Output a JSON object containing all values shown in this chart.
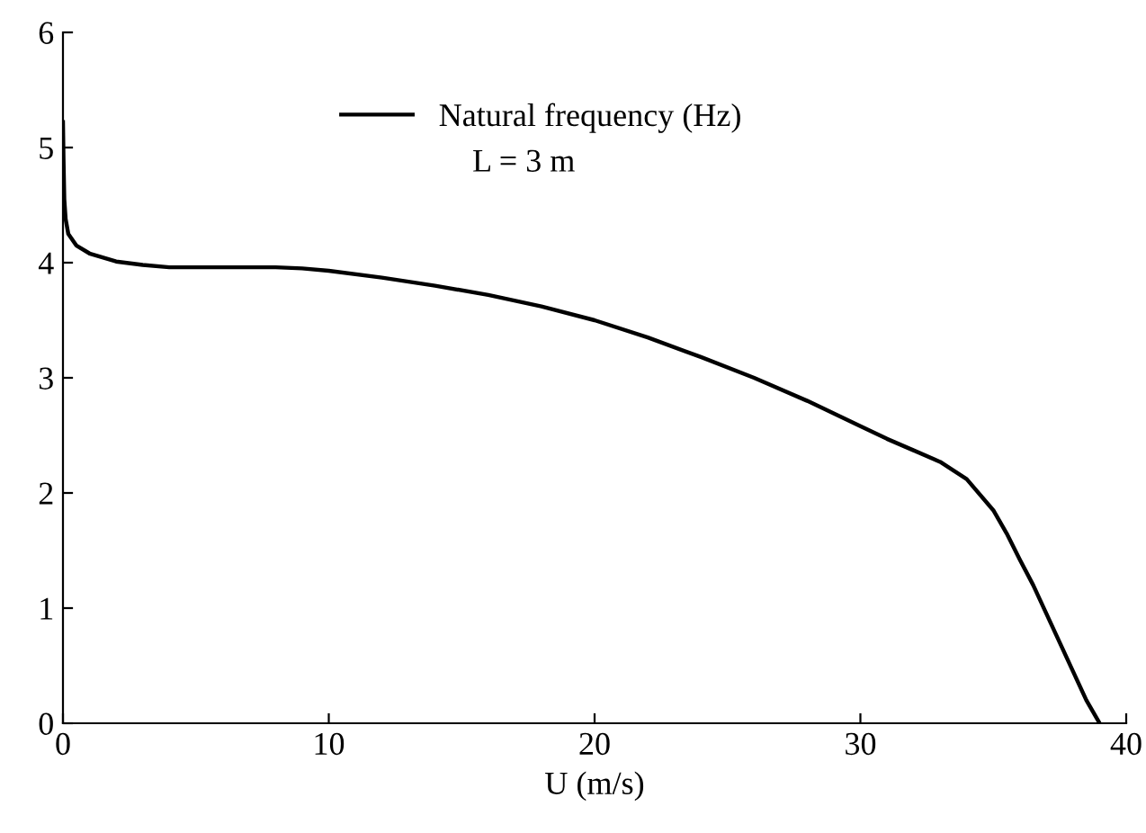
{
  "chart_data": {
    "type": "line",
    "xlabel": "U (m/s)",
    "x": [
      0,
      0.02,
      0.05,
      0.1,
      0.2,
      0.5,
      1,
      2,
      3,
      4,
      6,
      8,
      9,
      10,
      12,
      14,
      16,
      18,
      20,
      22,
      24,
      26,
      28,
      30,
      31,
      32,
      33,
      34,
      35,
      35.5,
      36,
      36.5,
      37,
      37.5,
      38,
      38.5,
      39
    ],
    "series": [
      {
        "name": "Natural frequency (Hz)",
        "color": "#000000",
        "values": [
          5.22,
          4.9,
          4.55,
          4.38,
          4.25,
          4.15,
          4.08,
          4.01,
          3.98,
          3.96,
          3.96,
          3.96,
          3.95,
          3.93,
          3.87,
          3.8,
          3.72,
          3.62,
          3.5,
          3.35,
          3.18,
          3.0,
          2.8,
          2.58,
          2.47,
          2.37,
          2.27,
          2.12,
          1.85,
          1.65,
          1.42,
          1.2,
          0.95,
          0.7,
          0.45,
          0.2,
          0.0
        ]
      }
    ],
    "xlim": [
      0,
      40
    ],
    "xticks": [
      0,
      10,
      20,
      30,
      40
    ],
    "ylim": [
      0,
      6
    ],
    "yticks": [
      0,
      1,
      2,
      3,
      4,
      5,
      6
    ],
    "legend": "top",
    "annotations": [
      "L = 3 m"
    ],
    "line_style": "solid",
    "marker": "none",
    "grid": false
  }
}
